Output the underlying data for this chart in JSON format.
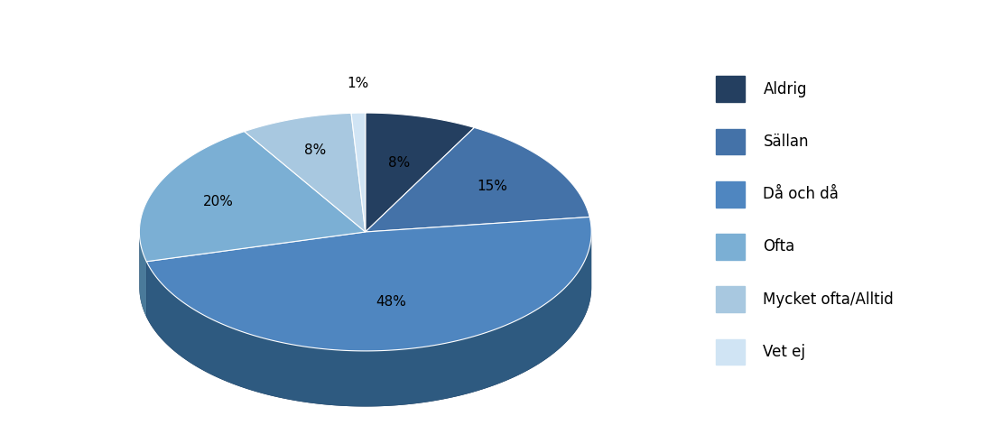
{
  "labels": [
    "Aldrig",
    "Sällan",
    "Då och då",
    "Ofta",
    "Mycket ofta/Alltid",
    "Vet ej"
  ],
  "values": [
    8,
    15,
    48,
    20,
    8,
    1
  ],
  "colors": [
    "#243F60",
    "#4472A8",
    "#4F86C0",
    "#7BAFD4",
    "#A8C8E0",
    "#D0E4F4"
  ],
  "depth_colors": [
    "#162840",
    "#2A5070",
    "#2E5A80",
    "#4A7A9A",
    "#6A9AB0",
    "#A0C0D8"
  ],
  "background_color": "#FFFFFF",
  "legend_fontsize": 12,
  "label_fontsize": 11,
  "vert_scale": 0.6,
  "depth": 0.28,
  "start_angle": 90
}
